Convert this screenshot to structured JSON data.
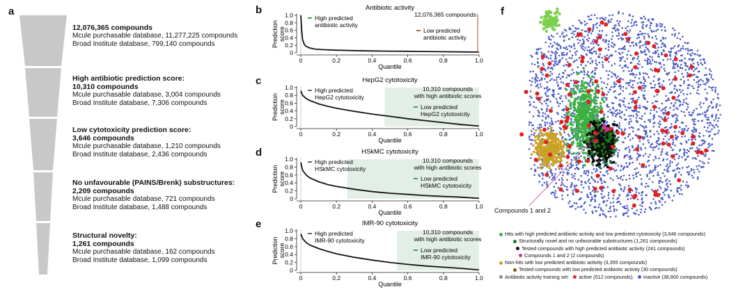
{
  "panel_letters": {
    "a": "a",
    "b": "b",
    "c": "c",
    "d": "d",
    "e": "e",
    "f": "f"
  },
  "funnel": [
    {
      "headline": "12,076,365 compounds",
      "heading_extra": "",
      "mcule": "Mcule purchasable database, 11,277,225 compounds",
      "broad": "Broad Institute database, 799,140 compounds"
    },
    {
      "headline": "High antibiotic prediction score:",
      "heading_extra": "10,310 compounds",
      "mcule": "Mcule purchasable database, 3,004 compounds",
      "broad": "Broad Institute database, 7,306 compounds"
    },
    {
      "headline": "Low cytotoxicity prediction score:",
      "heading_extra": "3,646 compounds",
      "mcule": "Mcule purchasable database, 1,210 compounds",
      "broad": "Broad Institute database, 2,436 compounds"
    },
    {
      "headline": "No unfavourable (PAINS/Brenk) substructures:",
      "heading_extra": "2,209 compounds",
      "mcule": "Mcule purchasable database, 721 compounds",
      "broad": "Broad Institute database, 1,488 compounds"
    },
    {
      "headline": "Structural novelty:",
      "heading_extra": "1,261 compounds",
      "mcule": "Mcule purchasable database, 162 compounds",
      "broad": "Broad Institute database, 1,099 compounds"
    }
  ],
  "chart_data": [
    {
      "type": "line",
      "title": "Antibiotic activity",
      "xlabel": "Quantile",
      "ylabel": "Prediction score",
      "xlim": [
        0,
        1
      ],
      "ylim": [
        0,
        1
      ],
      "xticks": [
        "0",
        "0.2",
        "0.4",
        "0.6",
        "0.8",
        "1.0"
      ],
      "yticks": [
        "0",
        "0.2",
        "0.4",
        "0.6",
        "0.8",
        "1.0"
      ],
      "curve_x": [
        0,
        0.005,
        0.01,
        0.02,
        0.03,
        0.05,
        0.08,
        0.12,
        0.2,
        0.3,
        0.4,
        0.5,
        0.6,
        0.7,
        0.8,
        0.9,
        1.0
      ],
      "curve_y": [
        1.0,
        0.6,
        0.35,
        0.22,
        0.17,
        0.13,
        0.1,
        0.085,
        0.07,
        0.06,
        0.05,
        0.045,
        0.04,
        0.035,
        0.03,
        0.025,
        0.02
      ],
      "shade": null,
      "high_label": "High predicted\nantibiotic activity",
      "low_label": "Low predicted\nantibiotic activity",
      "count_label": "12,076,365 compounds"
    },
    {
      "type": "line",
      "title": "HepG2 cytotoxicity",
      "xlabel": "Quantile",
      "ylabel": "Prediction score",
      "xlim": [
        0,
        1
      ],
      "ylim": [
        0,
        1
      ],
      "xticks": [
        "0",
        "0.2",
        "0.4",
        "0.6",
        "0.8",
        "1.0"
      ],
      "yticks": [
        "0",
        "0.2",
        "0.4",
        "0.6",
        "0.8",
        "1.0"
      ],
      "curve_x": [
        0,
        0.01,
        0.03,
        0.05,
        0.1,
        0.15,
        0.2,
        0.3,
        0.4,
        0.5,
        0.6,
        0.7,
        0.8,
        0.9,
        1.0
      ],
      "curve_y": [
        0.92,
        0.8,
        0.72,
        0.67,
        0.58,
        0.52,
        0.47,
        0.39,
        0.32,
        0.26,
        0.2,
        0.15,
        0.1,
        0.05,
        0.01
      ],
      "shade": [
        0.47,
        1.0
      ],
      "high_label": "High predicted\nHepG2 cytotoxicity",
      "low_label": "Low predicted\nHepG2 cytotoxicity",
      "count_label": "10,310 compounds\nwith high antibiotic scores"
    },
    {
      "type": "line",
      "title": "HSkMC cytotoxicity",
      "xlabel": "Quantile",
      "ylabel": "Prediction score",
      "xlim": [
        0,
        1
      ],
      "ylim": [
        0,
        1
      ],
      "xticks": [
        "0",
        "0.2",
        "0.4",
        "0.6",
        "0.8",
        "1.0"
      ],
      "yticks": [
        "0",
        "0.2",
        "0.4",
        "0.6",
        "0.8",
        "1.0"
      ],
      "curve_x": [
        0,
        0.01,
        0.03,
        0.05,
        0.1,
        0.15,
        0.2,
        0.3,
        0.4,
        0.5,
        0.6,
        0.7,
        0.8,
        0.9,
        1.0
      ],
      "curve_y": [
        0.92,
        0.72,
        0.6,
        0.53,
        0.43,
        0.36,
        0.31,
        0.24,
        0.18,
        0.14,
        0.11,
        0.08,
        0.06,
        0.04,
        0.01
      ],
      "shade": [
        0.26,
        1.0
      ],
      "high_label": "High predicted\nHSkMC cytotoxicity",
      "low_label": "Low predicted\nHSkMC cytotoxicity",
      "count_label": "10,310 compounds\nwith high antibiotic scores"
    },
    {
      "type": "line",
      "title": "IMR-90 cytotoxicity",
      "xlabel": "Quantile",
      "ylabel": "Prediction score",
      "xlim": [
        0,
        1
      ],
      "ylim": [
        0,
        1
      ],
      "xticks": [
        "0",
        "0.2",
        "0.4",
        "0.6",
        "0.8",
        "1.0"
      ],
      "yticks": [
        "0",
        "0.2",
        "0.4",
        "0.6",
        "0.8",
        "1.0"
      ],
      "curve_x": [
        0,
        0.01,
        0.03,
        0.05,
        0.1,
        0.15,
        0.2,
        0.3,
        0.4,
        0.5,
        0.6,
        0.7,
        0.8,
        0.9,
        1.0
      ],
      "curve_y": [
        0.92,
        0.8,
        0.7,
        0.64,
        0.55,
        0.48,
        0.42,
        0.33,
        0.26,
        0.2,
        0.15,
        0.11,
        0.08,
        0.05,
        0.01
      ],
      "shade": [
        0.54,
        1.0
      ],
      "high_label": "High predicted\nIMR-90 cytotoxicity",
      "low_label": "Low predicted\nIMR-90 cytotoxicity",
      "count_label": "10,310 compounds\nwith high antibiotic scores"
    }
  ],
  "scatter_callout": "Compounds 1 and 2",
  "legend_f": [
    {
      "text": "Hits with high predicted antibiotic activity and low predicted cytotoxicity (3,646 compounds)",
      "color": "#3cb043",
      "indent": 0
    },
    {
      "text": "Structurally novel and no unfavorable substructures (1,261 compounds)",
      "color": "#1a7a1a",
      "indent": 1
    },
    {
      "text": "Tested compounds with high predicted antibiotic activity (241 compounds)",
      "color": "#111111",
      "indent": 2
    },
    {
      "text": "Compounds 1 and 2 (2 compounds)",
      "color": "#c0399b",
      "indent": 3
    },
    {
      "text": "Non-hits with low predicted antibiotic activity (3,355 compounds)",
      "color": "#c9a227",
      "indent": 0
    },
    {
      "text": "Tested compounds with low predicted antibiotic activity (30 compounds)",
      "color": "#7a5c10",
      "indent": 1
    }
  ],
  "legend_training": {
    "prefix": "Antibiotic activity training set:",
    "active": "active (512 compounds);",
    "inactive": "inactive (38,800 compounds)",
    "prefix_color": "#888888",
    "active_color": "#e02020",
    "inactive_color": "#4a5bc4"
  },
  "colors": {
    "curve": "#111111",
    "shade": "#e3efe6",
    "funnel": "#c8c8c8",
    "green": "#2e9a3a",
    "brown": "#a0522d"
  }
}
